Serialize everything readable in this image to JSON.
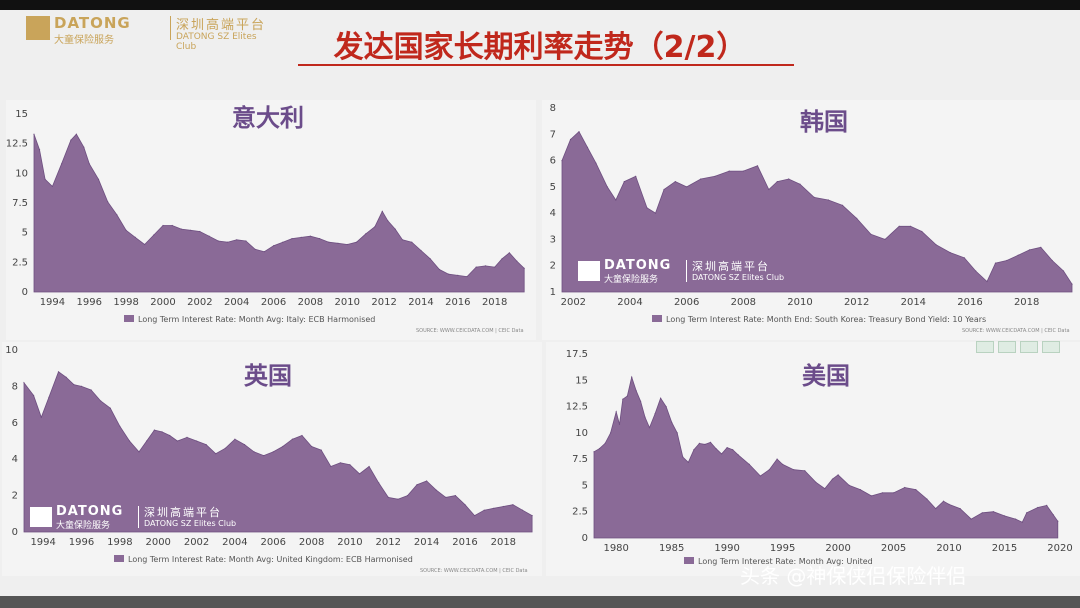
{
  "header": {
    "logo_en": "DATONG",
    "logo_cn": "大童保险服务",
    "logo_cn2": "深圳高端平台",
    "logo_en2": "DATONG SZ Elites Club",
    "title": "发达国家长期利率走势（2/2）"
  },
  "credit": "头条 @神保侠侣保险伴侣",
  "colors": {
    "fill": "#8a6a97",
    "stroke": "#6e4f80",
    "title": "#c0281c",
    "panel_title": "#6b4c8a"
  },
  "chart_data": [
    {
      "id": "italy",
      "type": "area",
      "title": "意大利",
      "legend": "Long Term Interest Rate: Month Avg: Italy: ECB Harmonised",
      "source": "SOURCE: WWW.CEICDATA.COM | CEIC Data",
      "xlim": [
        1993,
        2019.7
      ],
      "ylim": [
        0,
        15
      ],
      "xticks": [
        1994,
        1996,
        1998,
        2000,
        2002,
        2004,
        2006,
        2008,
        2010,
        2012,
        2014,
        2016,
        2018
      ],
      "yticks": [
        0,
        2.5,
        5,
        7.5,
        10,
        12.5,
        15
      ],
      "x": [
        1993.0,
        1993.3,
        1993.6,
        1994.0,
        1994.5,
        1995.0,
        1995.3,
        1995.7,
        1996.0,
        1996.5,
        1997.0,
        1997.5,
        1998.0,
        1998.5,
        1999.0,
        1999.5,
        2000.0,
        2000.5,
        2001.0,
        2001.5,
        2002.0,
        2002.5,
        2003.0,
        2003.5,
        2004.0,
        2004.5,
        2005.0,
        2005.5,
        2006.0,
        2006.5,
        2007.0,
        2007.5,
        2008.0,
        2008.5,
        2009.0,
        2009.5,
        2010.0,
        2010.5,
        2011.0,
        2011.5,
        2011.9,
        2012.2,
        2012.6,
        2013.0,
        2013.5,
        2014.0,
        2014.5,
        2015.0,
        2015.5,
        2016.0,
        2016.5,
        2017.0,
        2017.5,
        2018.0,
        2018.4,
        2018.8,
        2019.2,
        2019.6
      ],
      "values": [
        13.3,
        12.0,
        9.5,
        8.9,
        10.8,
        12.8,
        13.3,
        12.2,
        10.8,
        9.5,
        7.6,
        6.5,
        5.2,
        4.6,
        4.0,
        4.8,
        5.6,
        5.6,
        5.3,
        5.2,
        5.1,
        4.7,
        4.3,
        4.2,
        4.4,
        4.3,
        3.6,
        3.4,
        3.9,
        4.2,
        4.5,
        4.6,
        4.7,
        4.5,
        4.2,
        4.1,
        4.0,
        4.2,
        4.9,
        5.5,
        6.8,
        6.0,
        5.3,
        4.4,
        4.2,
        3.5,
        2.8,
        1.9,
        1.5,
        1.4,
        1.3,
        2.1,
        2.2,
        2.1,
        2.8,
        3.3,
        2.6,
        2.0
      ]
    },
    {
      "id": "korea",
      "type": "area",
      "title": "韩国",
      "legend": "Long Term Interest Rate: Month End: South Korea: Treasury Bond Yield: 10 Years",
      "source": "SOURCE: WWW.CEICDATA.COM | CEIC Data",
      "xlim": [
        2001.6,
        2019.6
      ],
      "ylim": [
        1,
        8
      ],
      "xticks": [
        2002,
        2004,
        2006,
        2008,
        2010,
        2012,
        2014,
        2016,
        2018
      ],
      "yticks": [
        1,
        2,
        3,
        4,
        5,
        6,
        7,
        8
      ],
      "x": [
        2001.6,
        2001.9,
        2002.2,
        2002.5,
        2002.8,
        2003.2,
        2003.5,
        2003.8,
        2004.2,
        2004.6,
        2004.9,
        2005.2,
        2005.6,
        2006.0,
        2006.5,
        2007.0,
        2007.5,
        2008.0,
        2008.5,
        2008.9,
        2009.2,
        2009.6,
        2010.0,
        2010.5,
        2011.0,
        2011.5,
        2012.0,
        2012.5,
        2013.0,
        2013.5,
        2013.9,
        2014.3,
        2014.8,
        2015.3,
        2015.8,
        2016.2,
        2016.6,
        2016.9,
        2017.3,
        2017.7,
        2018.1,
        2018.5,
        2018.9,
        2019.3,
        2019.6
      ],
      "values": [
        6.0,
        6.8,
        7.1,
        6.5,
        5.9,
        5.0,
        4.5,
        5.2,
        5.4,
        4.2,
        4.0,
        4.9,
        5.2,
        5.0,
        5.3,
        5.4,
        5.6,
        5.6,
        5.8,
        4.9,
        5.2,
        5.3,
        5.1,
        4.6,
        4.5,
        4.3,
        3.8,
        3.2,
        3.0,
        3.5,
        3.5,
        3.3,
        2.8,
        2.5,
        2.3,
        1.8,
        1.4,
        2.1,
        2.2,
        2.4,
        2.6,
        2.7,
        2.2,
        1.8,
        1.3
      ]
    },
    {
      "id": "uk",
      "type": "area",
      "title": "英国",
      "legend": "Long Term Interest Rate: Month Avg: United Kingdom: ECB Harmonised",
      "source": "SOURCE: WWW.CEICDATA.COM | CEIC Data",
      "xlim": [
        1993,
        2019.6
      ],
      "ylim": [
        0,
        10
      ],
      "xticks": [
        1994,
        1996,
        1998,
        2000,
        2002,
        2004,
        2006,
        2008,
        2010,
        2012,
        2014,
        2016,
        2018
      ],
      "yticks": [
        0,
        2,
        4,
        6,
        8,
        10
      ],
      "x": [
        1993.0,
        1993.5,
        1993.9,
        1994.3,
        1994.8,
        1995.2,
        1995.6,
        1996.0,
        1996.5,
        1997.0,
        1997.5,
        1998.0,
        1998.5,
        1999.0,
        1999.4,
        1999.8,
        2000.2,
        2000.6,
        2001.0,
        2001.5,
        2002.0,
        2002.5,
        2003.0,
        2003.5,
        2004.0,
        2004.5,
        2005.0,
        2005.5,
        2006.0,
        2006.5,
        2007.0,
        2007.5,
        2008.0,
        2008.5,
        2009.0,
        2009.5,
        2010.0,
        2010.5,
        2011.0,
        2011.5,
        2012.0,
        2012.5,
        2013.0,
        2013.5,
        2014.0,
        2014.5,
        2015.0,
        2015.5,
        2016.0,
        2016.5,
        2017.0,
        2017.5,
        2018.0,
        2018.5,
        2019.0,
        2019.5
      ],
      "values": [
        8.2,
        7.5,
        6.3,
        7.4,
        8.8,
        8.5,
        8.1,
        8.0,
        7.8,
        7.2,
        6.8,
        5.8,
        5.0,
        4.4,
        5.0,
        5.6,
        5.5,
        5.3,
        5.0,
        5.2,
        5.0,
        4.8,
        4.3,
        4.6,
        5.1,
        4.8,
        4.4,
        4.2,
        4.4,
        4.7,
        5.1,
        5.3,
        4.7,
        4.5,
        3.6,
        3.8,
        3.7,
        3.2,
        3.6,
        2.7,
        1.9,
        1.8,
        2.0,
        2.6,
        2.8,
        2.3,
        1.9,
        2.0,
        1.5,
        0.9,
        1.2,
        1.3,
        1.4,
        1.5,
        1.2,
        0.9
      ]
    },
    {
      "id": "usa",
      "type": "area",
      "title": "美国",
      "legend": "Long Term Interest Rate: Month Avg: United",
      "source": "",
      "xlim": [
        1978,
        2020
      ],
      "ylim": [
        0,
        17.5
      ],
      "xticks": [
        1980,
        1985,
        1990,
        1995,
        2000,
        2005,
        2010,
        2015,
        2020
      ],
      "yticks": [
        0,
        2.5,
        5,
        7.5,
        10,
        12.5,
        15,
        17.5
      ],
      "x": [
        1978.0,
        1978.5,
        1979.0,
        1979.5,
        1980.0,
        1980.3,
        1980.6,
        1981.0,
        1981.4,
        1981.8,
        1982.2,
        1982.6,
        1983.0,
        1983.5,
        1984.0,
        1984.5,
        1985.0,
        1985.5,
        1986.0,
        1986.5,
        1987.0,
        1987.5,
        1988.0,
        1988.5,
        1989.0,
        1989.5,
        1990.0,
        1990.5,
        1991.0,
        1992.0,
        1993.0,
        1993.8,
        1994.5,
        1995.0,
        1996.0,
        1997.0,
        1998.0,
        1998.8,
        1999.5,
        2000.0,
        2001.0,
        2002.0,
        2003.0,
        2004.0,
        2005.0,
        2006.0,
        2007.0,
        2008.0,
        2008.8,
        2009.5,
        2010.0,
        2011.0,
        2012.0,
        2013.0,
        2014.0,
        2015.0,
        2016.0,
        2016.6,
        2017.0,
        2018.0,
        2018.8,
        2019.4,
        2019.8
      ],
      "values": [
        8.2,
        8.5,
        9.0,
        10.0,
        12.0,
        10.8,
        13.2,
        13.5,
        15.3,
        14.0,
        13.0,
        11.5,
        10.5,
        11.8,
        13.3,
        12.5,
        11.0,
        10.0,
        7.7,
        7.2,
        8.4,
        9.0,
        8.9,
        9.1,
        8.5,
        8.0,
        8.6,
        8.4,
        7.9,
        7.0,
        5.9,
        6.5,
        7.5,
        7.0,
        6.5,
        6.4,
        5.3,
        4.7,
        5.6,
        6.0,
        5.0,
        4.6,
        4.0,
        4.3,
        4.3,
        4.8,
        4.6,
        3.7,
        2.8,
        3.5,
        3.2,
        2.8,
        1.8,
        2.4,
        2.5,
        2.1,
        1.8,
        1.5,
        2.4,
        2.9,
        3.1,
        2.2,
        1.6
      ]
    }
  ]
}
